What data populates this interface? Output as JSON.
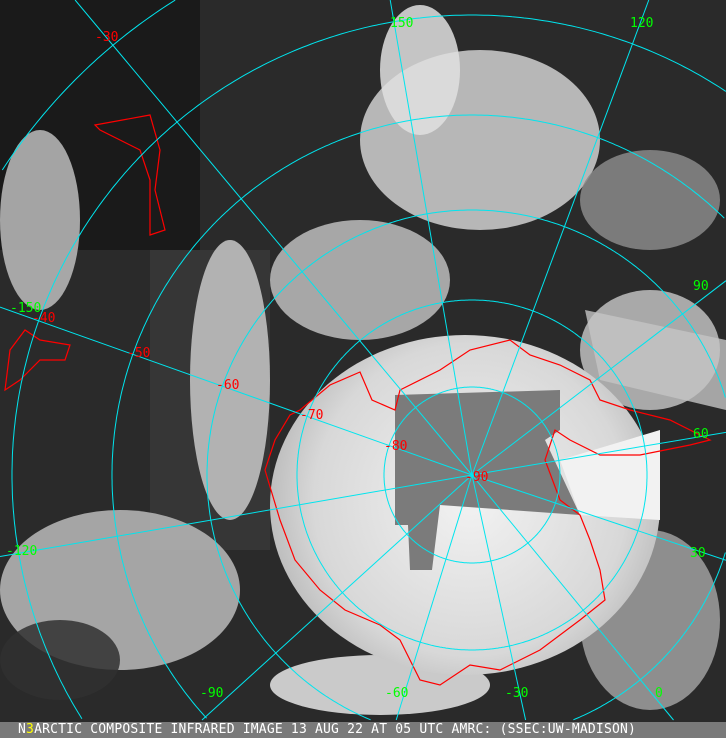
{
  "caption": {
    "prefix": "N",
    "marker": "3",
    "text": "ARCTIC COMPOSITE INFRARED IMAGE 13 AUG 22 AT 05 UTC AMRC: (SSEC:UW-MADISON)"
  },
  "longitude_labels": [
    "150",
    "120",
    "90",
    "60",
    "30",
    "0",
    "-30",
    "-60",
    "-90",
    "-120",
    "-150"
  ],
  "latitude_labels": [
    "-30",
    "-40",
    "-50",
    "-60",
    "-70",
    "-80",
    "-90"
  ],
  "colors": {
    "graticule": "#00e5ee",
    "coastline": "#ff0000",
    "longitude_text": "#00ff00",
    "latitude_text": "#ff0000",
    "caption_marker": "#ffff00"
  }
}
